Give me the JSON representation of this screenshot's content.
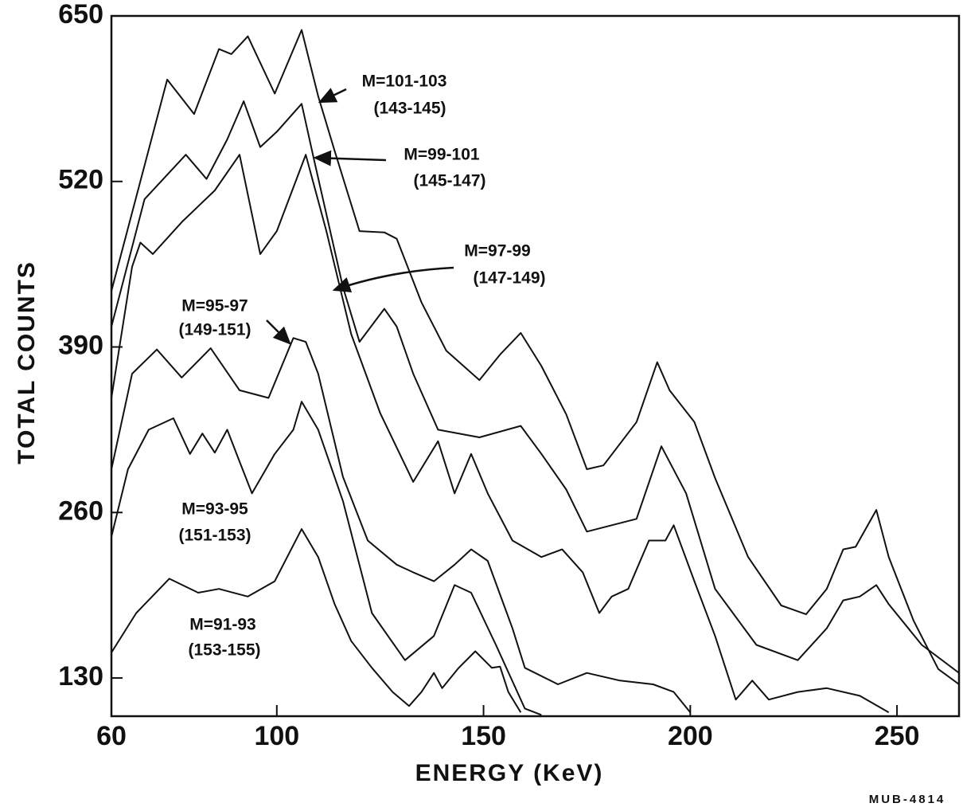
{
  "chart_data": {
    "type": "line",
    "y_label": "TOTAL COUNTS",
    "x_label": "ENERGY (KeV)",
    "note": "MUB-4814",
    "xlim": [
      60,
      265
    ],
    "ylim": [
      100,
      650
    ],
    "xticks": [
      60,
      100,
      150,
      200,
      250
    ],
    "yticks": [
      130,
      260,
      390,
      520,
      650
    ],
    "grid": false,
    "color": "#111111",
    "annotations": [
      [
        "M=101-103",
        "(143-145)"
      ],
      [
        "M=99-101",
        "(145-147)"
      ],
      [
        "M=97-99",
        "(147-149)"
      ],
      [
        "M=95-97",
        "(149-151)"
      ],
      [
        "M=93-95",
        "(151-153)"
      ],
      [
        "M=91-93",
        "(153-155)"
      ]
    ],
    "series": [
      {
        "x": [
          60,
          73.5,
          80,
          86,
          89,
          93,
          99.5,
          106,
          110,
          114,
          120,
          126,
          129,
          135,
          141,
          149,
          154,
          159,
          164,
          170,
          175,
          179,
          187,
          192,
          195,
          201,
          206,
          214,
          222,
          228,
          233,
          237,
          240,
          245,
          248,
          254,
          260,
          265
        ],
        "values": [
          434,
          600,
          573,
          624,
          620,
          634,
          589,
          639,
          587,
          544,
          481,
          480,
          475,
          425,
          387,
          364,
          384,
          401,
          375,
          337,
          294,
          297,
          331,
          378,
          356,
          331,
          287,
          225,
          187,
          180,
          200,
          231,
          233,
          262,
          225,
          175,
          137,
          125
        ]
      },
      {
        "x": [
          60,
          68,
          78,
          83,
          88,
          92,
          96,
          100,
          106,
          109,
          116,
          120,
          126,
          129,
          133,
          139,
          149,
          159,
          164,
          170,
          175,
          187,
          193,
          199,
          206,
          216,
          226,
          233,
          237,
          241,
          245,
          248,
          256,
          265
        ],
        "values": [
          406,
          506,
          541,
          522,
          553,
          583,
          547,
          559,
          581,
          537,
          437,
          394,
          420,
          406,
          369,
          325,
          319,
          328,
          306,
          278,
          245,
          255,
          312,
          275,
          200,
          156,
          144,
          169,
          191,
          194,
          203,
          188,
          156,
          134
        ]
      },
      {
        "x": [
          60,
          65,
          67,
          70,
          77,
          85,
          91,
          96,
          100,
          107,
          112,
          118,
          125,
          133,
          139,
          143,
          147,
          151,
          157,
          164,
          169,
          174,
          178,
          181,
          185,
          190,
          194,
          196,
          201,
          206,
          211,
          215,
          219,
          226,
          233,
          241,
          248
        ],
        "values": [
          350,
          453,
          472,
          463,
          488,
          513,
          541,
          463,
          481,
          541,
          481,
          400,
          338,
          284,
          316,
          275,
          306,
          275,
          238,
          225,
          231,
          213,
          181,
          194,
          200,
          238,
          238,
          250,
          206,
          163,
          113,
          128,
          113,
          119,
          122,
          116,
          103
        ]
      },
      {
        "x": [
          60,
          65,
          71,
          77,
          84,
          91,
          98,
          104,
          107,
          110,
          116,
          122,
          129,
          133,
          138,
          143,
          147,
          151,
          157,
          160,
          168,
          175,
          183,
          191,
          196,
          200
        ],
        "values": [
          294,
          369,
          388,
          366,
          389,
          356,
          350,
          397,
          394,
          369,
          288,
          238,
          219,
          213,
          206,
          219,
          231,
          222,
          169,
          138,
          125,
          134,
          128,
          125,
          119,
          103
        ]
      },
      {
        "x": [
          60,
          64,
          69,
          75,
          79,
          82,
          85,
          88,
          91,
          94,
          99.5,
          104,
          106,
          110,
          116,
          123,
          131,
          138,
          143,
          147,
          153,
          160,
          164
        ],
        "values": [
          241,
          294,
          325,
          334,
          306,
          322,
          307,
          325,
          300,
          275,
          306,
          325,
          347,
          325,
          269,
          181,
          144,
          163,
          203,
          197,
          156,
          106,
          101
        ]
      },
      {
        "x": [
          60,
          66,
          74,
          81,
          86,
          93,
          99.5,
          106,
          110,
          114,
          118,
          123,
          128,
          132,
          135,
          138,
          140,
          144,
          148,
          152,
          154,
          156,
          159
        ],
        "values": [
          150,
          181,
          208,
          197,
          200,
          194,
          206,
          247,
          225,
          188,
          159,
          138,
          119,
          108,
          119,
          134,
          122,
          138,
          151,
          138,
          139,
          119,
          103
        ]
      }
    ]
  }
}
